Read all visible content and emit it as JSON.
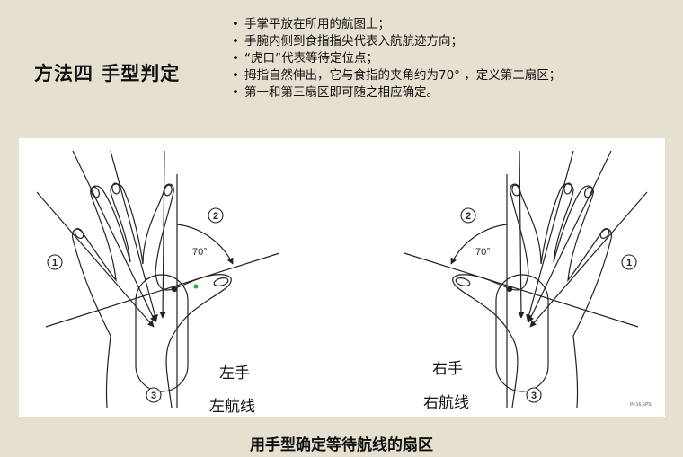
{
  "title": "方法四  手型判定",
  "bullets": [
    "手掌平放在所用的航图上；",
    "手腕内侧到食指指尖代表入航航迹方向；",
    "“虎口”代表等待定位点；",
    "拇指自然伸出，它与食指的夹角约为70°  ，定义第二扇区；",
    "第一和第三扇区即可随之相应确定。"
  ],
  "figure": {
    "left_hand": {
      "angle_label": "70°",
      "sector_1": "1",
      "sector_2": "2",
      "sector_3": "3",
      "hand_label": "左手",
      "line_label": "左航线"
    },
    "right_hand": {
      "angle_label": "70°",
      "sector_1": "1",
      "sector_2": "2",
      "sector_3": "3",
      "hand_label": "右手",
      "line_label": "右航线"
    },
    "file_tag": "IN-16.EPS"
  },
  "caption": "用手型确定等待航线的扇区",
  "colors": {
    "background": "#e6e0d1",
    "panel": "#ffffff",
    "ink": "#222222",
    "accent_dot": "#2aa84a"
  }
}
